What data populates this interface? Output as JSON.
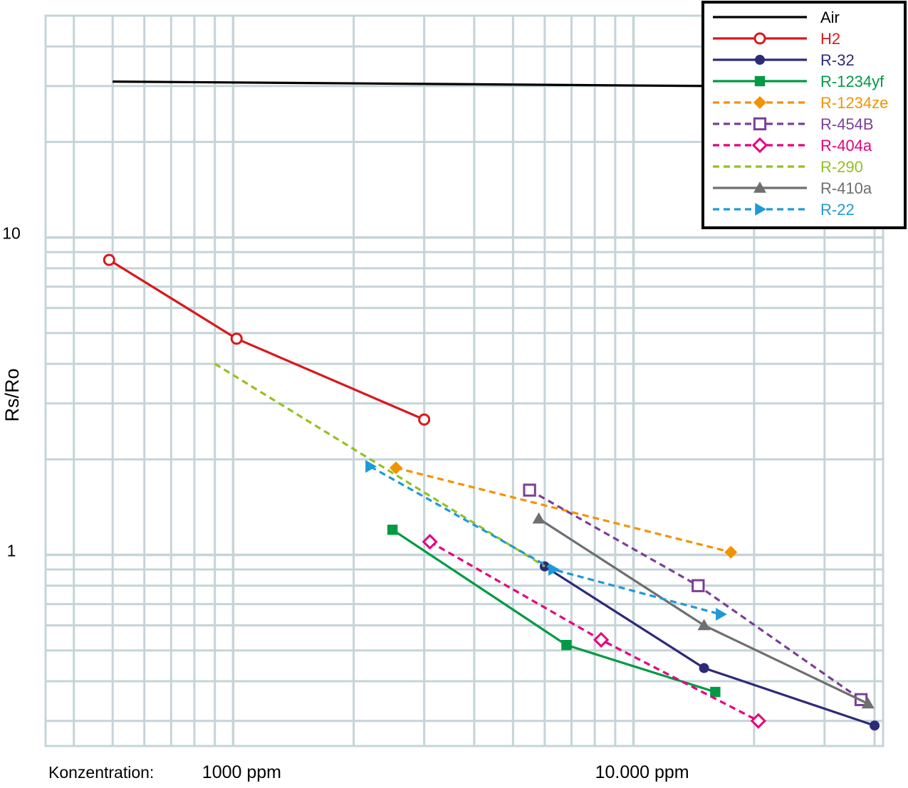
{
  "chart_data": {
    "type": "line",
    "title": "",
    "xlabel": "Konzentration:",
    "ylabel": "Rs/Ro",
    "x_scale": "log",
    "y_scale": "log",
    "xlim": [
      340,
      42000
    ],
    "ylim": [
      0.25,
      50
    ],
    "x_ticks": [
      {
        "value": 1000,
        "label": "1000 ppm"
      },
      {
        "value": 10000,
        "label": "10.000 ppm"
      }
    ],
    "y_ticks": [
      {
        "value": 10,
        "label": "10"
      },
      {
        "value": 1,
        "label": "1"
      }
    ],
    "grid": true,
    "legend_position": "top-right",
    "series": [
      {
        "name": "Air",
        "color": "#000000",
        "dash": "solid",
        "marker": "none",
        "x": [
          500,
          16000
        ],
        "y": [
          31,
          30
        ]
      },
      {
        "name": "H2",
        "color": "#d7191c",
        "dash": "solid",
        "marker": "circle-open",
        "x": [
          490,
          1020,
          3000
        ],
        "y": [
          8.5,
          4.8,
          2.67
        ]
      },
      {
        "name": "R-32",
        "color": "#2e2a7a",
        "dash": "solid",
        "marker": "circle",
        "x": [
          6000,
          15000,
          40000
        ],
        "y": [
          0.92,
          0.44,
          0.29
        ]
      },
      {
        "name": "R-1234yf",
        "color": "#009a44",
        "dash": "solid",
        "marker": "square",
        "x": [
          2500,
          6800,
          16000
        ],
        "y": [
          1.2,
          0.52,
          0.37
        ]
      },
      {
        "name": "R-1234ze",
        "color": "#f39200",
        "dash": "dash",
        "marker": "diamond",
        "x": [
          2550,
          17500
        ],
        "y": [
          1.88,
          1.02
        ]
      },
      {
        "name": "R-454B",
        "color": "#7b3f98",
        "dash": "dash",
        "marker": "square-open",
        "x": [
          5500,
          14500,
          37000
        ],
        "y": [
          1.6,
          0.8,
          0.35
        ]
      },
      {
        "name": "R-404a",
        "color": "#e6007e",
        "dash": "dash",
        "marker": "diamond-open",
        "x": [
          3100,
          8300,
          20500
        ],
        "y": [
          1.1,
          0.54,
          0.3
        ]
      },
      {
        "name": "R-290",
        "color": "#95c11f",
        "dash": "dash",
        "marker": "none",
        "x": [
          900,
          6000
        ],
        "y": [
          4.0,
          0.92
        ]
      },
      {
        "name": "R-410a",
        "color": "#6f6f6f",
        "dash": "solid",
        "marker": "triangle",
        "x": [
          5800,
          15000,
          38500
        ],
        "y": [
          1.3,
          0.6,
          0.34
        ]
      },
      {
        "name": "R-22",
        "color": "#1d9ad6",
        "dash": "dash",
        "marker": "triangle-right",
        "x": [
          2200,
          6300,
          16500
        ],
        "y": [
          1.9,
          0.9,
          0.65
        ]
      }
    ]
  }
}
